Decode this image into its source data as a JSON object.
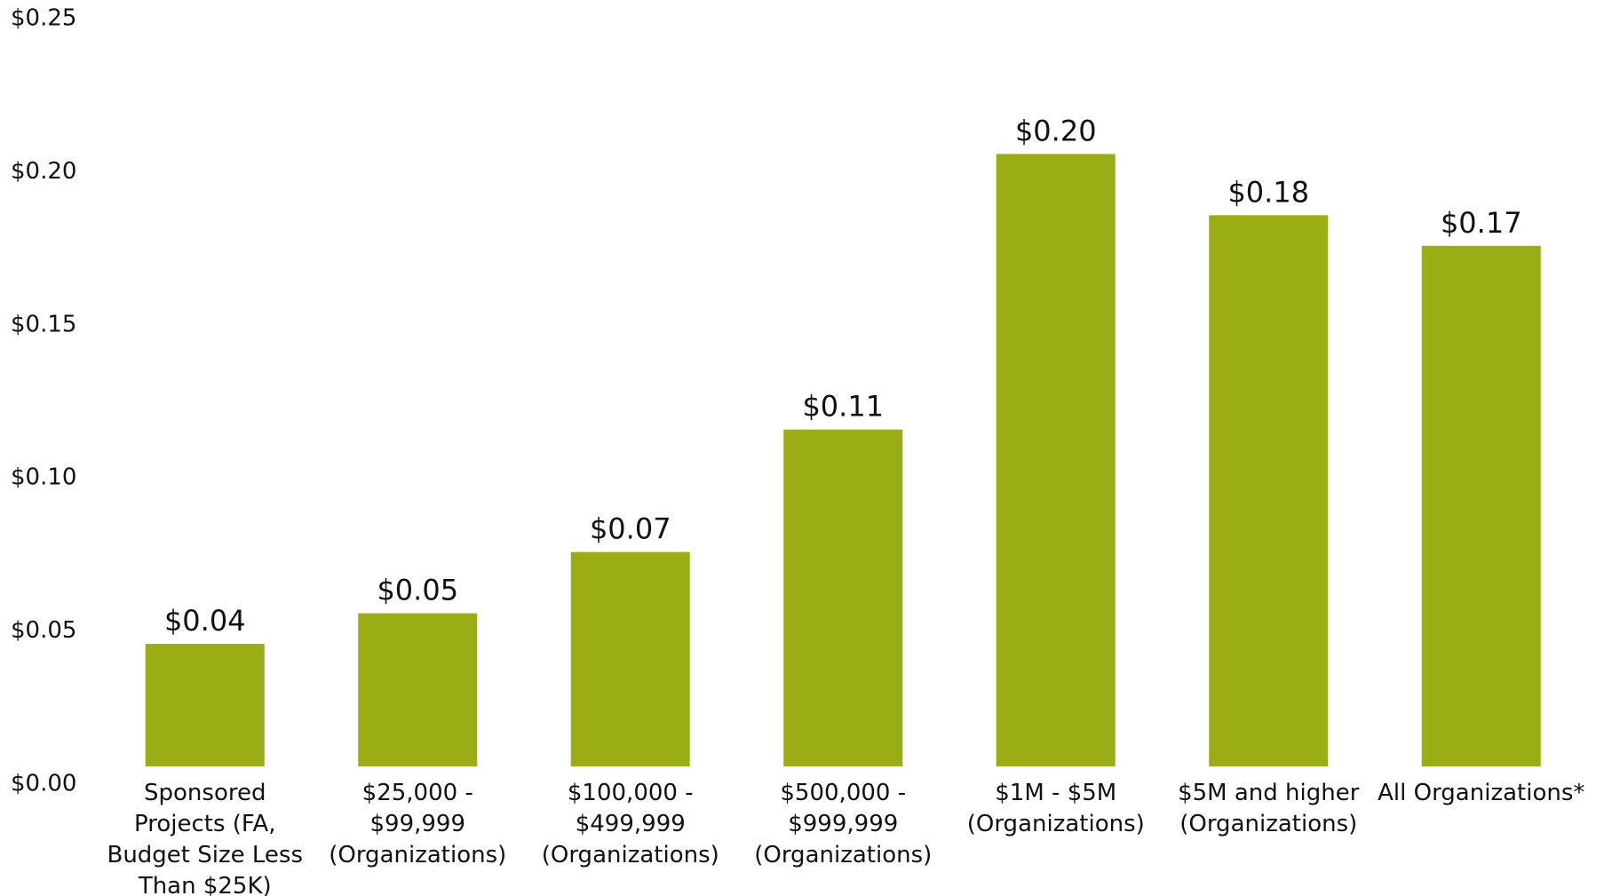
{
  "chart_data": {
    "type": "bar",
    "categories": [
      "Sponsored Projects (FA, Budget Size Less Than $25K)",
      "$25,000 - $99,999 (Organizations)",
      "$100,000 - $499,999 (Organizations)",
      "$500,000 - $999,999 (Organizations)",
      "$1M - $5M (Organizations)",
      "$5M and higher (Organizations)",
      "All Organizations*"
    ],
    "values": [
      0.04,
      0.05,
      0.07,
      0.11,
      0.2,
      0.18,
      0.17
    ],
    "value_labels": [
      "$0.04",
      "$0.05",
      "$0.07",
      "$0.11",
      "$0.20",
      "$0.18",
      "$0.17"
    ],
    "color": "#9aad14",
    "ylim": [
      0,
      0.25
    ],
    "yticks": [
      {
        "value": 0,
        "label": "$0.00"
      },
      {
        "value": 0.05,
        "label": "$0.05"
      },
      {
        "value": 0.1,
        "label": "$0.10"
      },
      {
        "value": 0.15,
        "label": "$0.15"
      },
      {
        "value": 0.2,
        "label": "$0.20"
      },
      {
        "value": 0.25,
        "label": "$0.25"
      }
    ],
    "grid": false
  }
}
